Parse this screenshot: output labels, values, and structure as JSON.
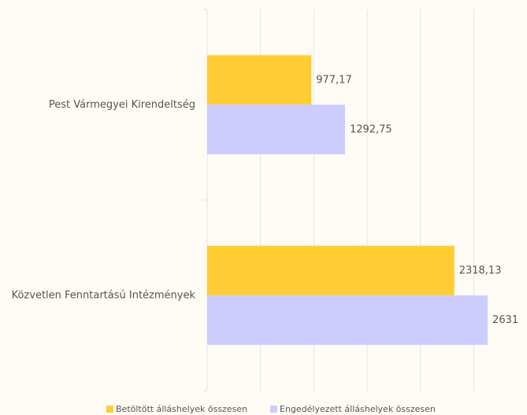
{
  "chart_data": {
    "type": "hbar",
    "categories": [
      "Pest Vármegyei Kirendeltség",
      "Közvetlen Fenntartású Intézmények"
    ],
    "series": [
      {
        "name": "Betöltött álláshelyek összesen",
        "color": "#ffcc33",
        "values": [
          977.17,
          2318.13
        ],
        "value_labels": [
          "977,17",
          "2318,13"
        ]
      },
      {
        "name": "Engedélyezett álláshelyek összesen",
        "color": "#ccccff",
        "values": [
          1292.75,
          2631
        ],
        "value_labels": [
          "1292,75",
          "2631"
        ]
      }
    ],
    "xlim": [
      0,
      3000
    ],
    "xticks": [
      0,
      500,
      1000,
      1500,
      2000,
      2500
    ],
    "grid": true
  }
}
